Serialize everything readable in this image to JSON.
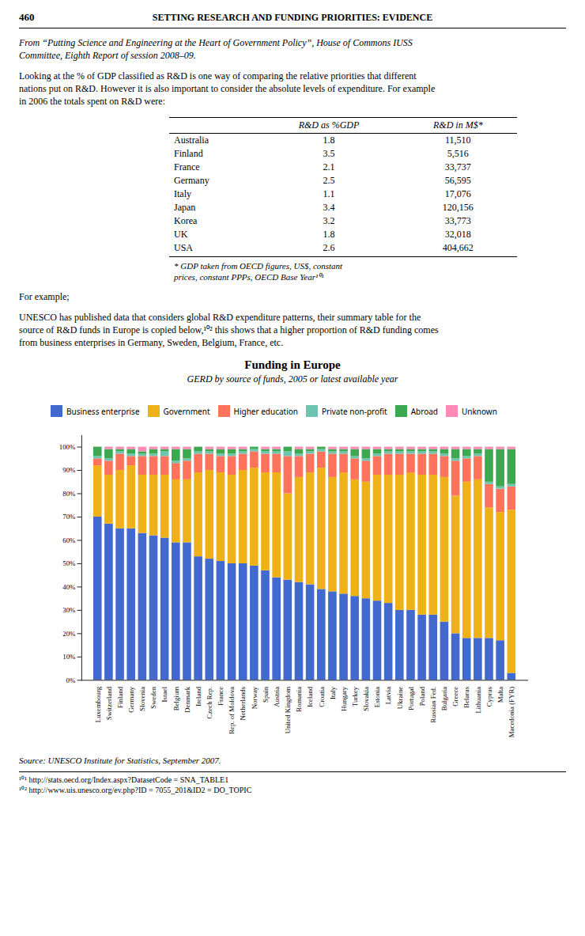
{
  "page": {
    "page_number": "460",
    "header": "SETTING RESEARCH AND FUNDING PRIORITIES: EVIDENCE",
    "intro": [
      "From “Putting Science and Engineering at the Heart of Government Policy”, House of Commons IUSS",
      "Committee, Eighth Report of session 2008–09."
    ],
    "body1": [
      "Looking at the % of GDP classified as R&D is one way of comparing the relative priorities that different",
      "nations put on R&D. However it is also important to consider the absolute levels of expenditure. For example",
      "in 2006 the totals spent on R&D were:"
    ],
    "table": {
      "columns": [
        "R&D as %GDP",
        "R&D in M$*"
      ],
      "rows": [
        [
          "Australia",
          "1.8",
          "11,510"
        ],
        [
          "Finland",
          "3.5",
          "5,516"
        ],
        [
          "France",
          "2.1",
          "33,737"
        ],
        [
          "Germany",
          "2.5",
          "56,595"
        ],
        [
          "Italy",
          "1.1",
          "17,076"
        ],
        [
          "Japan",
          "3.4",
          "120,156"
        ],
        [
          "Korea",
          "3.2",
          "33,773"
        ],
        [
          "UK",
          "1.8",
          "32,018"
        ],
        [
          "USA",
          "2.6",
          "404,662"
        ]
      ],
      "notes": [
        "* GDP taken from OECD figures, US$, constant",
        "prices, constant PPPs, OECD Base Year¹⁰¹"
      ]
    },
    "for_example": "For example;",
    "body2": [
      "UNESCO has published data that considers global R&D expenditure patterns, their summary table for the",
      "source of R&D funds in Europe is copied below,¹⁰² this shows that a higher proportion of R&D funding comes",
      "from business enterprises in Germany, Sweden, Belgium, France, etc."
    ],
    "footnotes": [
      "¹⁰¹ http://stats.oecd.org/Index.aspx?DatasetCode = SNA_TABLE1",
      "¹⁰² http://www.uis.unesco.org/ev.php?ID = 7055_201&ID2 = DO_TOPIC"
    ]
  },
  "chart_data": {
    "type": "bar",
    "stacked": true,
    "title": "Funding in Europe",
    "subtitle": "GERD by source of funds, 2005 or latest available year",
    "annotations": [
      "Source:   UNESCO Institute for Statistics, September 2007."
    ],
    "categories": [
      "Luxembourg",
      "Switzerland",
      "Finland",
      "Germany",
      "Slovenia",
      "Sweden",
      "Israel",
      "Belgium",
      "Denmark",
      "Ireland",
      "Czech Rep.",
      "France",
      "Rep. of Moldova",
      "Netherlands",
      "Norway",
      "Spain",
      "Austria",
      "United Kingdom",
      "Romania",
      "Iceland",
      "Croatia",
      "Italy",
      "Hungary",
      "Turkey",
      "Slovakia",
      "Estonia",
      "Latvia",
      "Ukraine",
      "Portugal",
      "Poland",
      "Russian Fed.",
      "Bulgaria",
      "Greece",
      "Belarus",
      "Lithuania",
      "Cyprus",
      "Malta",
      "Macedonia (FYR)"
    ],
    "series": [
      {
        "name": "Business enterprise",
        "values": [
          70,
          67,
          65,
          65,
          63,
          62,
          61,
          59,
          59,
          53,
          52,
          51,
          50,
          50,
          49,
          47,
          44,
          43,
          42,
          41,
          39,
          38,
          37,
          36,
          35,
          34,
          33,
          30,
          30,
          28,
          28,
          25,
          20,
          18,
          18,
          18,
          17,
          3
        ]
      },
      {
        "name": "Government",
        "values": [
          22,
          21,
          25,
          27,
          25,
          26,
          27,
          27,
          27,
          36,
          38,
          38,
          38,
          40,
          42,
          42,
          45,
          37,
          45,
          48,
          52,
          49,
          52,
          50,
          50,
          54,
          55,
          58,
          59,
          60,
          60,
          62,
          59,
          67,
          68,
          56,
          55,
          70
        ]
      },
      {
        "name": "Higher education",
        "values": [
          3,
          6,
          7,
          4,
          8,
          8,
          8,
          7,
          8,
          8,
          7,
          7,
          8,
          7,
          7,
          8,
          8,
          16,
          9,
          8,
          7,
          10,
          8,
          9,
          9,
          8,
          9,
          9,
          8,
          9,
          9,
          9,
          15,
          10,
          10,
          10,
          10,
          10
        ]
      },
      {
        "name": "Private non-profit",
        "values": [
          1,
          1,
          1,
          1,
          1,
          1,
          2,
          1,
          1,
          1,
          1,
          1,
          1,
          1,
          1,
          1,
          1,
          2,
          1,
          1,
          1,
          1,
          1,
          1,
          1,
          1,
          1,
          1,
          1,
          1,
          1,
          1,
          1,
          1,
          1,
          1,
          1,
          1
        ]
      },
      {
        "name": "Abroad",
        "values": [
          4,
          4,
          1,
          2,
          1,
          2,
          1,
          5,
          4,
          2,
          1,
          2,
          2,
          1,
          1,
          1,
          1,
          2,
          2,
          1,
          1,
          1,
          1,
          3,
          4,
          2,
          1,
          1,
          1,
          1,
          1,
          2,
          4,
          3,
          2,
          14,
          16,
          15
        ]
      },
      {
        "name": "Unknown",
        "values": [
          0,
          1,
          1,
          1,
          2,
          1,
          1,
          1,
          1,
          0,
          1,
          1,
          1,
          1,
          0,
          1,
          1,
          0,
          1,
          1,
          0,
          1,
          1,
          1,
          1,
          1,
          1,
          1,
          1,
          1,
          1,
          1,
          1,
          1,
          1,
          1,
          1,
          1
        ]
      }
    ],
    "ylim": [
      0,
      105
    ],
    "yticks": [
      {
        "value": 0,
        "label": "0%"
      },
      {
        "value": 10,
        "label": "10%"
      },
      {
        "value": 20,
        "label": "20%"
      },
      {
        "value": 30,
        "label": "30%"
      },
      {
        "value": 40,
        "label": "40%"
      },
      {
        "value": 50,
        "label": "50%"
      },
      {
        "value": 60,
        "label": "60%"
      },
      {
        "value": 70,
        "label": "70%"
      },
      {
        "value": 80,
        "label": "80%"
      },
      {
        "value": 90,
        "label": "90%"
      },
      {
        "value": 100,
        "label": "100%"
      }
    ],
    "grid": false,
    "legend": "top"
  }
}
